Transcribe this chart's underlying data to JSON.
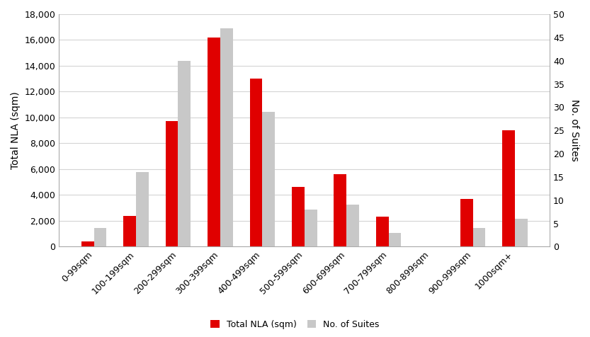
{
  "categories": [
    "0-99sqm",
    "100-199sqm",
    "200-299sqm",
    "300-399sqm",
    "400-499sqm",
    "500-599sqm",
    "600-699sqm",
    "700-799sqm",
    "800-899sqm",
    "900-999sqm",
    "1000sqm+"
  ],
  "total_nla": [
    400,
    2400,
    9700,
    16200,
    13000,
    4600,
    5600,
    2300,
    0,
    3700,
    9000
  ],
  "num_suites": [
    4,
    16,
    40,
    47,
    29,
    8,
    9,
    3,
    0,
    4,
    6
  ],
  "bar_color_nla": "#e00000",
  "bar_color_suites": "#c8c8c8",
  "ylabel_left": "Total NLA (sqm)",
  "ylabel_right": "No. of Suites",
  "ylim_left": [
    0,
    18000
  ],
  "ylim_right": [
    0,
    50
  ],
  "yticks_left": [
    0,
    2000,
    4000,
    6000,
    8000,
    10000,
    12000,
    14000,
    16000,
    18000
  ],
  "yticks_right": [
    0,
    5,
    10,
    15,
    20,
    25,
    30,
    35,
    40,
    45,
    50
  ],
  "legend_labels": [
    "Total NLA (sqm)",
    "No. of Suites"
  ],
  "background_color": "#ffffff",
  "grid_color": "#d4d4d4",
  "bar_width": 0.3,
  "label_fontsize": 10,
  "tick_fontsize": 9,
  "legend_fontsize": 9
}
